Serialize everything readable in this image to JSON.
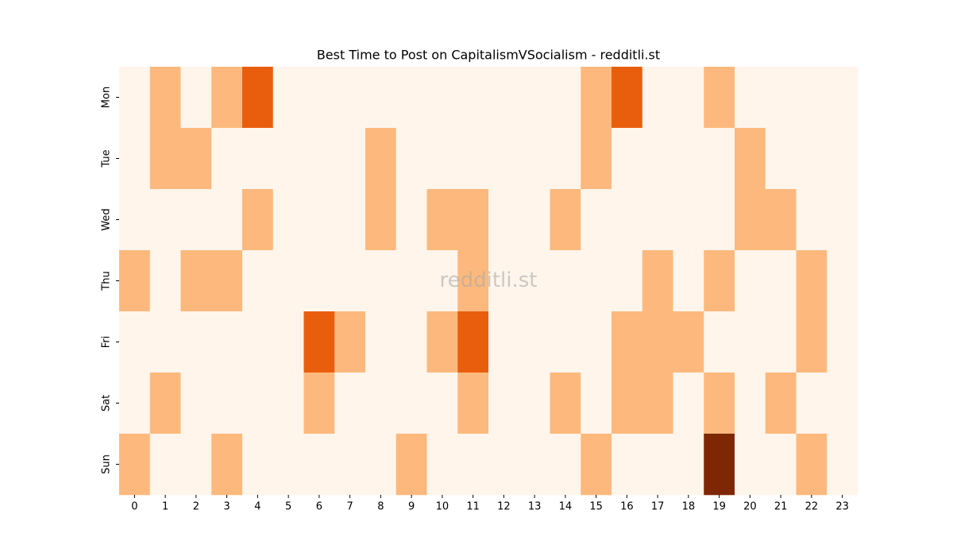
{
  "chart_data": {
    "type": "heatmap",
    "title": "Best Time to Post on CapitalismVSocialism - redditli.st",
    "watermark": "redditli.st",
    "x": [
      0,
      1,
      2,
      3,
      4,
      5,
      6,
      7,
      8,
      9,
      10,
      11,
      12,
      13,
      14,
      15,
      16,
      17,
      18,
      19,
      20,
      21,
      22,
      23
    ],
    "y": [
      "Mon",
      "Tue",
      "Wed",
      "Thu",
      "Fri",
      "Sat",
      "Sun"
    ],
    "values": [
      [
        0,
        1,
        0,
        1,
        2,
        0,
        0,
        0,
        0,
        0,
        0,
        0,
        0,
        0,
        0,
        1,
        2,
        0,
        0,
        1,
        0,
        0,
        0,
        0
      ],
      [
        0,
        1,
        1,
        0,
        0,
        0,
        0,
        0,
        1,
        0,
        0,
        0,
        0,
        0,
        0,
        1,
        0,
        0,
        0,
        0,
        1,
        0,
        0,
        0
      ],
      [
        0,
        0,
        0,
        0,
        1,
        0,
        0,
        0,
        1,
        0,
        1,
        1,
        0,
        0,
        1,
        0,
        0,
        0,
        0,
        0,
        1,
        1,
        0,
        0
      ],
      [
        1,
        0,
        1,
        1,
        0,
        0,
        0,
        0,
        0,
        0,
        0,
        1,
        0,
        0,
        0,
        0,
        0,
        1,
        0,
        1,
        0,
        0,
        1,
        0
      ],
      [
        0,
        0,
        0,
        0,
        0,
        0,
        2,
        1,
        0,
        0,
        1,
        2,
        0,
        0,
        0,
        0,
        1,
        1,
        1,
        0,
        0,
        0,
        1,
        0
      ],
      [
        0,
        1,
        0,
        0,
        0,
        0,
        1,
        0,
        0,
        0,
        0,
        1,
        0,
        0,
        1,
        0,
        1,
        1,
        0,
        1,
        0,
        1,
        0,
        0
      ],
      [
        1,
        0,
        0,
        1,
        0,
        0,
        0,
        0,
        0,
        1,
        0,
        0,
        0,
        0,
        0,
        1,
        0,
        0,
        0,
        3,
        0,
        0,
        1,
        0
      ]
    ],
    "colors": [
      "#fff5eb",
      "#fdb97d",
      "#e95e0d",
      "#7f2704"
    ]
  }
}
